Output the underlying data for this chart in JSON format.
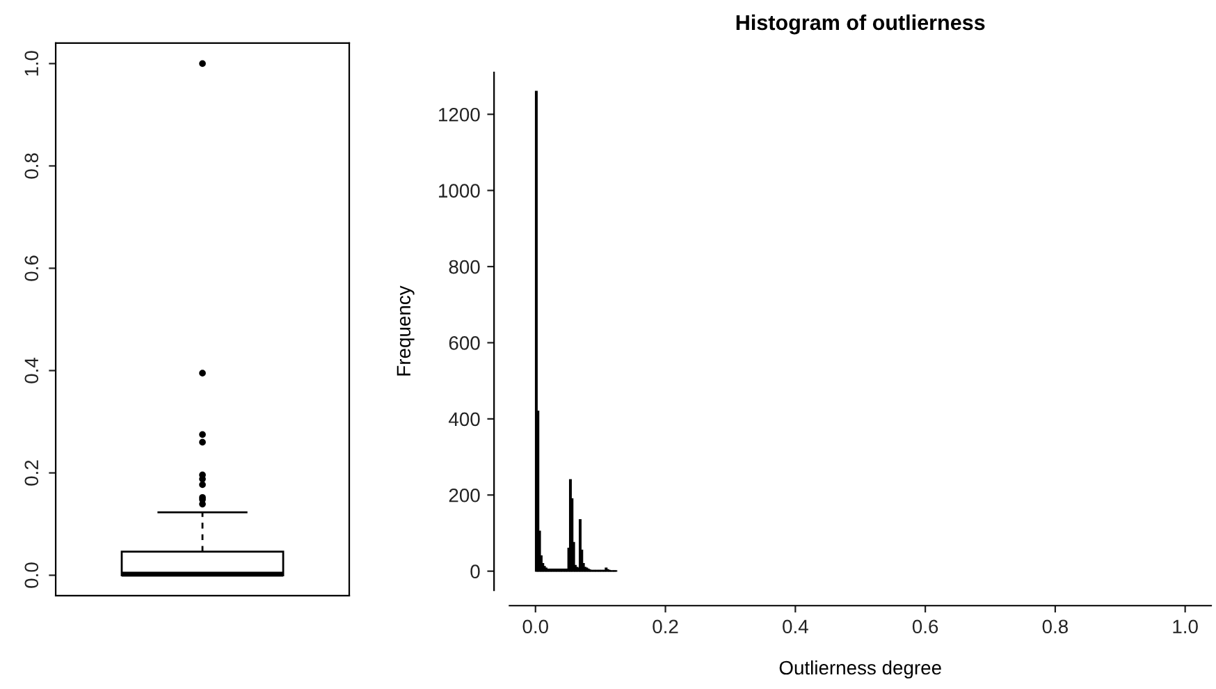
{
  "chart_data": [
    {
      "type": "box",
      "categories": [
        null
      ],
      "ylim": [
        -0.04,
        1.04
      ],
      "yticks": [
        {
          "value": 0,
          "label": "0.0"
        },
        0.2,
        0.4,
        0.6,
        0.8,
        {
          "value": 1,
          "label": "1.0"
        }
      ],
      "tick_labels": "y",
      "grid": false,
      "color": "#000000",
      "boxes": [
        {
          "low": 0,
          "q1": 0,
          "median": 0.002,
          "q3": 0.046,
          "high": 0.123,
          "outliers": [
            1.0,
            0.395,
            0.275,
            0.26,
            0.196,
            0.188,
            0.177,
            0.152,
            0.148,
            0.139
          ]
        }
      ]
    },
    {
      "type": "histogram",
      "title": "Histogram of outlierness",
      "xlabel": "Outlierness degree",
      "ylabel": "Frequency",
      "color": "#000000",
      "grid": false,
      "xlim": [
        -0.04,
        1.04
      ],
      "xticks": [
        {
          "value": 0,
          "label": "0.0"
        },
        0.2,
        0.4,
        0.6,
        0.8,
        {
          "value": 1,
          "label": "1.0"
        }
      ],
      "ylim": [
        -50,
        1310
      ],
      "yticks": [
        0,
        200,
        400,
        600,
        800,
        1000,
        1200
      ],
      "bins": [
        0,
        0.0025,
        0.005,
        0.0075,
        0.01,
        0.0125,
        0.015,
        0.0175,
        0.02,
        0.0225,
        0.025,
        0.0275,
        0.03,
        0.0325,
        0.035,
        0.0375,
        0.04,
        0.0425,
        0.045,
        0.0475,
        0.05,
        0.0525,
        0.055,
        0.0575,
        0.06,
        0.0625,
        0.065,
        0.0675,
        0.07,
        0.0725,
        0.075,
        0.0775,
        0.08,
        0.0825,
        0.085,
        0.0875,
        0.09,
        0.0925,
        0.095,
        0.0975,
        0.1,
        0.1025,
        0.105,
        0.1075,
        0.11,
        0.1125,
        0.115,
        0.1175,
        0.12,
        0.1225,
        0.125
      ],
      "values": [
        1260,
        420,
        105,
        40,
        20,
        12,
        8,
        5,
        5,
        5,
        5,
        5,
        5,
        5,
        5,
        5,
        5,
        5,
        5,
        5,
        60,
        240,
        190,
        75,
        15,
        10,
        8,
        135,
        55,
        20,
        10,
        8,
        5,
        3,
        2,
        2,
        2,
        2,
        2,
        2,
        2,
        2,
        2,
        8,
        4,
        2,
        1,
        1,
        1,
        1
      ]
    }
  ]
}
